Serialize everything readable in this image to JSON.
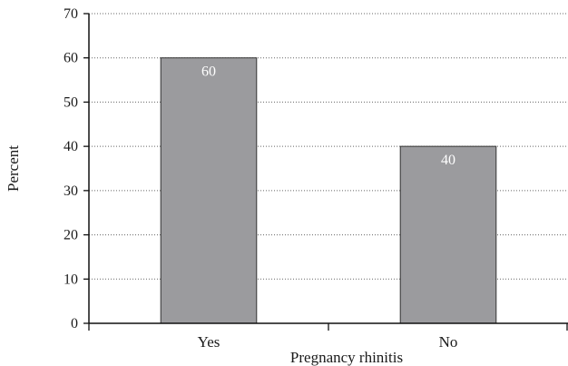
{
  "chart_data": {
    "type": "bar",
    "categories": [
      "Yes",
      "No"
    ],
    "values": [
      60,
      40
    ],
    "data_labels": [
      "60",
      "40"
    ],
    "xlabel": "Pregnancy rhinitis",
    "ylabel": "Percent",
    "ylim": [
      0,
      70
    ],
    "yticks": [
      0,
      10,
      20,
      30,
      40,
      50,
      60,
      70
    ],
    "grid": true,
    "bar_color": "#9b9b9e",
    "data_label_color": "#ffffff"
  }
}
